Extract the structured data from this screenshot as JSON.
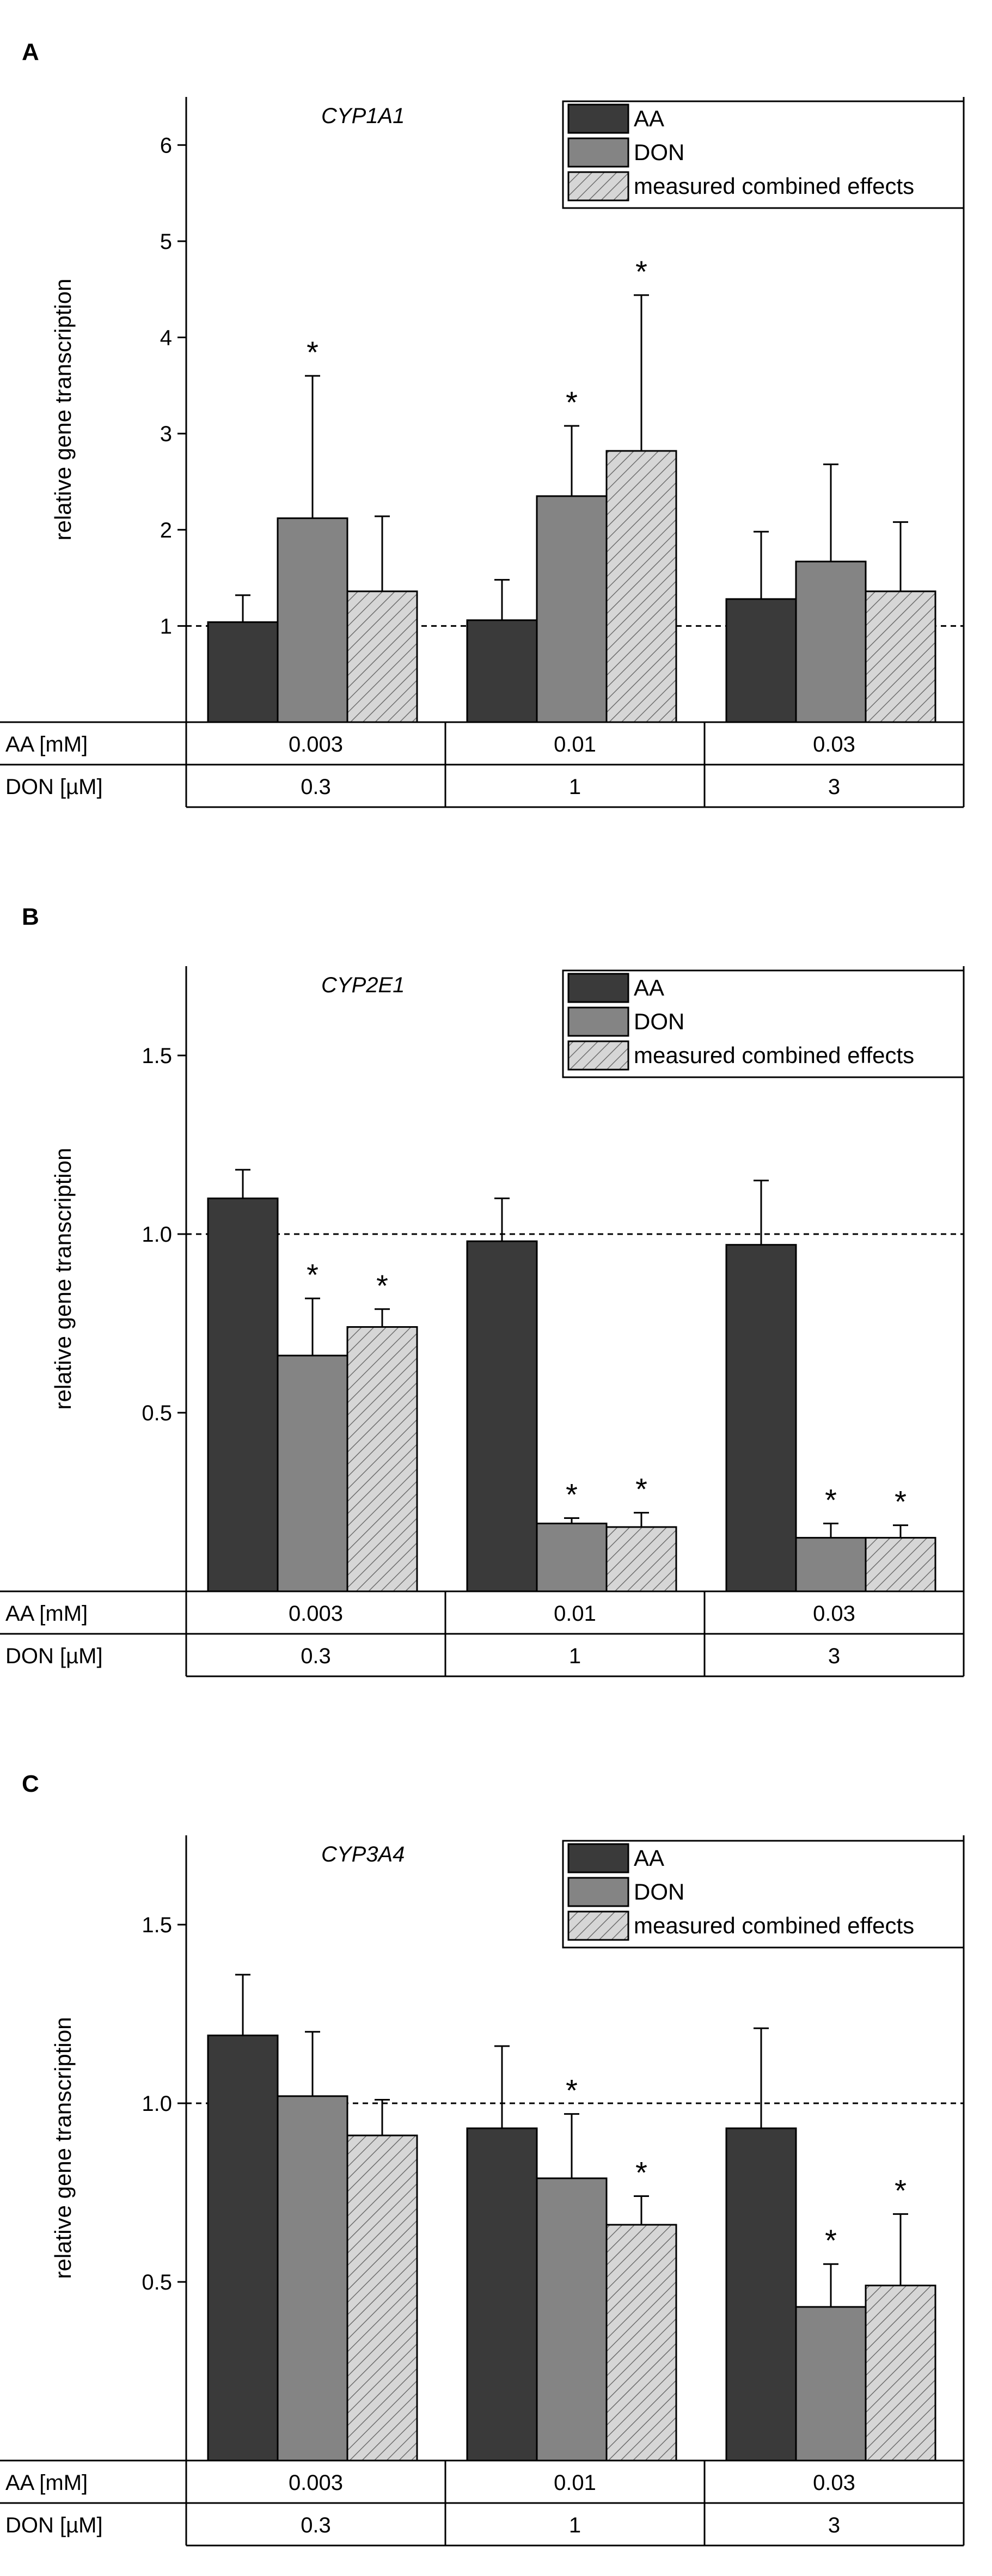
{
  "chart_data": [
    {
      "type": "bar",
      "panel": "A",
      "title": "CYP1A1",
      "ylabel": "relative gene transcription",
      "ylim": [
        0,
        6.5
      ],
      "yticks": [
        1,
        2,
        3,
        4,
        5,
        6
      ],
      "ytick_labels": [
        "1",
        "2",
        "3",
        "4",
        "5",
        "6"
      ],
      "reference_line": 1.0,
      "row_labels": [
        "AA [mM]",
        "DON [µM]"
      ],
      "aa_values": [
        "0.003",
        "0.01",
        "0.03"
      ],
      "don_values": [
        "0.3",
        "1",
        "3"
      ],
      "series": [
        {
          "name": "AA",
          "values": [
            1.04,
            1.06,
            1.28
          ],
          "errors": [
            0.28,
            0.42,
            0.7
          ],
          "significant": [
            false,
            false,
            false
          ]
        },
        {
          "name": "DON",
          "values": [
            2.12,
            2.35,
            1.67
          ],
          "errors": [
            1.48,
            0.73,
            1.01
          ],
          "significant": [
            true,
            true,
            false
          ]
        },
        {
          "name": "measured combined effects",
          "values": [
            1.36,
            2.82,
            1.36
          ],
          "errors": [
            0.78,
            1.62,
            0.72
          ],
          "significant": [
            false,
            true,
            false
          ]
        }
      ],
      "star_label": "*"
    },
    {
      "type": "bar",
      "panel": "B",
      "title": "CYP2E1",
      "ylabel": "relative gene transcription",
      "ylim": [
        0,
        1.75
      ],
      "yticks": [
        0.5,
        1.0,
        1.5
      ],
      "ytick_labels": [
        "0.5",
        "1.0",
        "1.5"
      ],
      "reference_line": 1.0,
      "row_labels": [
        "AA [mM]",
        "DON [µM]"
      ],
      "aa_values": [
        "0.003",
        "0.01",
        "0.03"
      ],
      "don_values": [
        "0.3",
        "1",
        "3"
      ],
      "series": [
        {
          "name": "AA",
          "values": [
            1.1,
            0.98,
            0.97
          ],
          "errors": [
            0.08,
            0.12,
            0.18
          ],
          "significant": [
            false,
            false,
            false
          ]
        },
        {
          "name": "DON",
          "values": [
            0.66,
            0.19,
            0.15
          ],
          "errors": [
            0.16,
            0.015,
            0.04
          ],
          "significant": [
            true,
            true,
            true
          ]
        },
        {
          "name": "measured combined effects",
          "values": [
            0.74,
            0.18,
            0.15
          ],
          "errors": [
            0.05,
            0.04,
            0.035
          ],
          "significant": [
            true,
            true,
            true
          ]
        }
      ],
      "star_label": "*"
    },
    {
      "type": "bar",
      "panel": "C",
      "title": "CYP3A4",
      "ylabel": "relative gene transcription",
      "ylim": [
        0,
        1.75
      ],
      "yticks": [
        0.5,
        1.0,
        1.5
      ],
      "ytick_labels": [
        "0.5",
        "1.0",
        "1.5"
      ],
      "reference_line": 1.0,
      "row_labels": [
        "AA [mM]",
        "DON [µM]"
      ],
      "aa_values": [
        "0.003",
        "0.01",
        "0.03"
      ],
      "don_values": [
        "0.3",
        "1",
        "3"
      ],
      "series": [
        {
          "name": "AA",
          "values": [
            1.19,
            0.93,
            0.93
          ],
          "errors": [
            0.17,
            0.23,
            0.28
          ],
          "significant": [
            false,
            false,
            false
          ]
        },
        {
          "name": "DON",
          "values": [
            1.02,
            0.79,
            0.43
          ],
          "errors": [
            0.18,
            0.18,
            0.12
          ],
          "significant": [
            false,
            true,
            true
          ]
        },
        {
          "name": "measured combined effects",
          "values": [
            0.91,
            0.66,
            0.49
          ],
          "errors": [
            0.1,
            0.08,
            0.2
          ],
          "significant": [
            false,
            true,
            true
          ]
        }
      ],
      "star_label": "*"
    }
  ]
}
